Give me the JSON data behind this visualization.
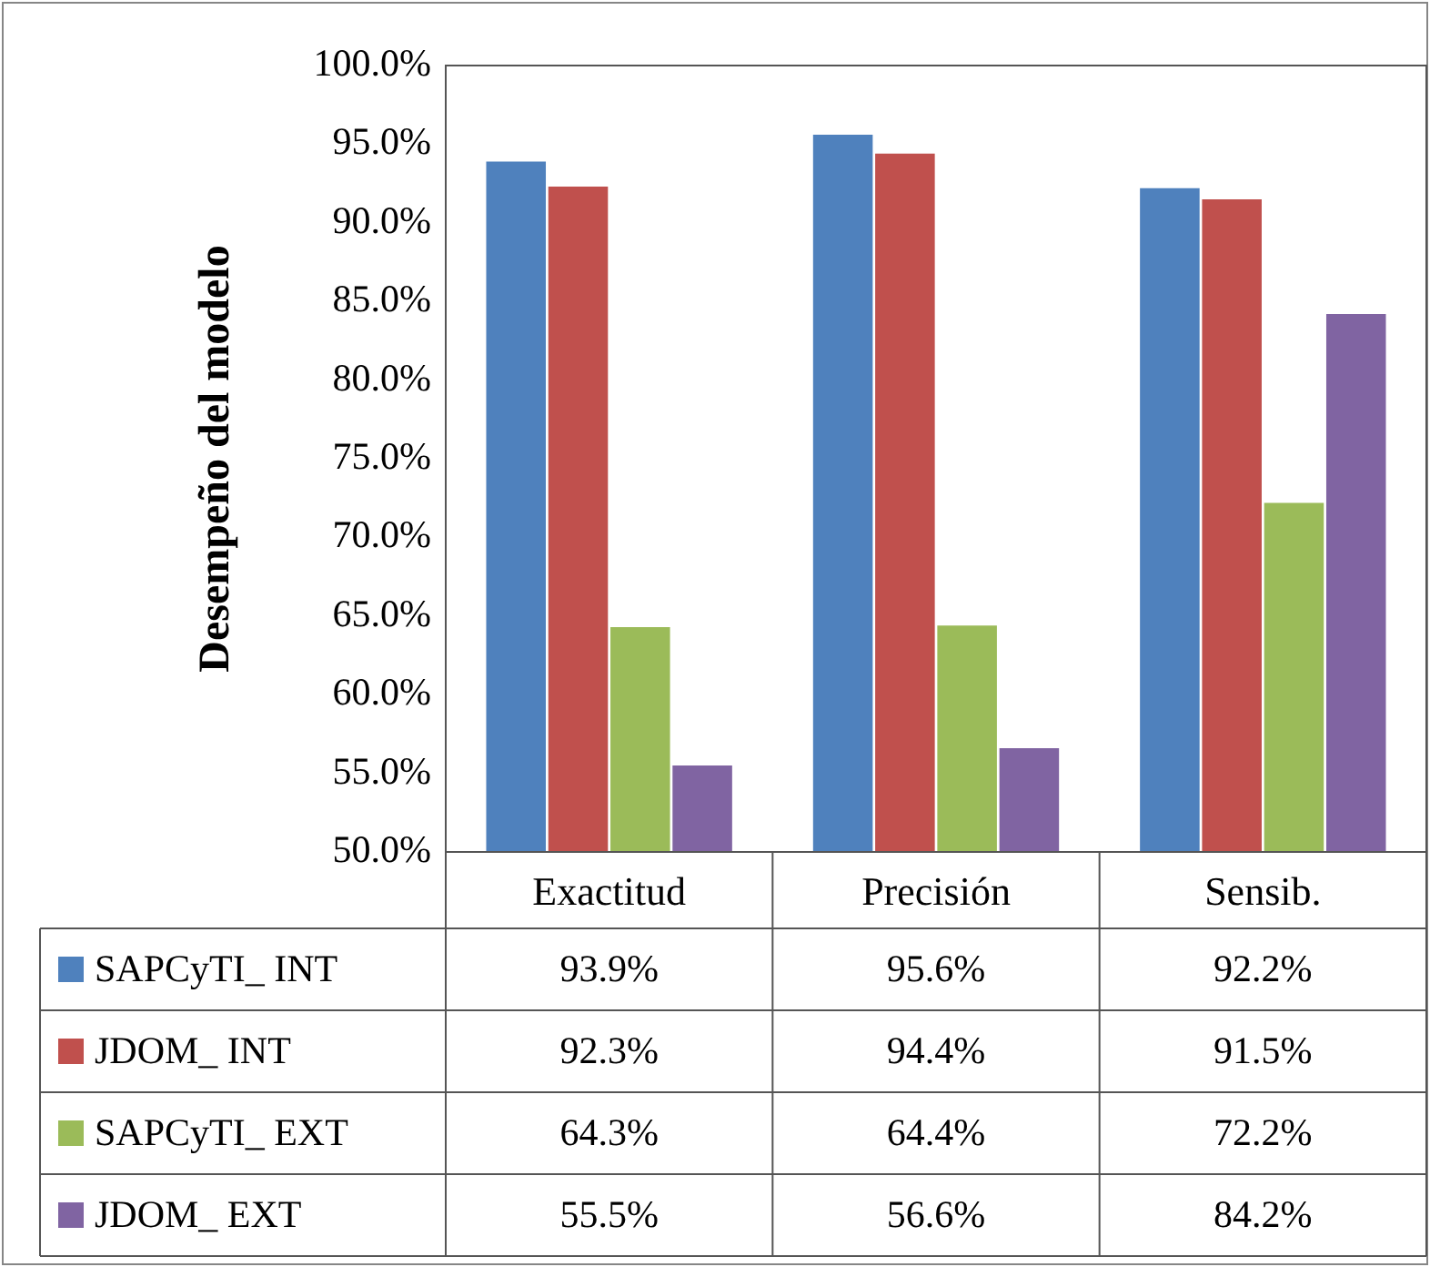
{
  "chart_data": {
    "type": "bar",
    "ylabel": "Desempeño del modelo",
    "categories": [
      "Exactitud",
      "Precisión",
      "Sensib."
    ],
    "series": [
      {
        "name": "SAPCyTI_ INT",
        "color": "#4f81bd",
        "values": [
          93.9,
          95.6,
          92.2
        ],
        "value_labels": [
          "93.9%",
          "95.6%",
          "92.2%"
        ]
      },
      {
        "name": "JDOM_ INT",
        "color": "#c0504d",
        "values": [
          92.3,
          94.4,
          91.5
        ],
        "value_labels": [
          "92.3%",
          "94.4%",
          "91.5%"
        ]
      },
      {
        "name": "SAPCyTI_ EXT",
        "color": "#9bbb59",
        "values": [
          64.3,
          64.4,
          72.2
        ],
        "value_labels": [
          "64.3%",
          "64.4%",
          "72.2%"
        ]
      },
      {
        "name": "JDOM_ EXT",
        "color": "#8064a2",
        "values": [
          55.5,
          56.6,
          84.2
        ],
        "value_labels": [
          "55.5%",
          "56.6%",
          "84.2%"
        ]
      }
    ],
    "ylim": [
      50,
      100
    ],
    "yticks": [
      {
        "value": 50,
        "label": "50.0%"
      },
      {
        "value": 55,
        "label": "55.0%"
      },
      {
        "value": 60,
        "label": "60.0%"
      },
      {
        "value": 65,
        "label": "65.0%"
      },
      {
        "value": 70,
        "label": "70.0%"
      },
      {
        "value": 75,
        "label": "75.0%"
      },
      {
        "value": 80,
        "label": "80.0%"
      },
      {
        "value": 85,
        "label": "85.0%"
      },
      {
        "value": 90,
        "label": "90.0%"
      },
      {
        "value": 95,
        "label": "95.0%"
      },
      {
        "value": 100,
        "label": "100.0%"
      }
    ],
    "grid": false,
    "legend": "bottom left"
  }
}
